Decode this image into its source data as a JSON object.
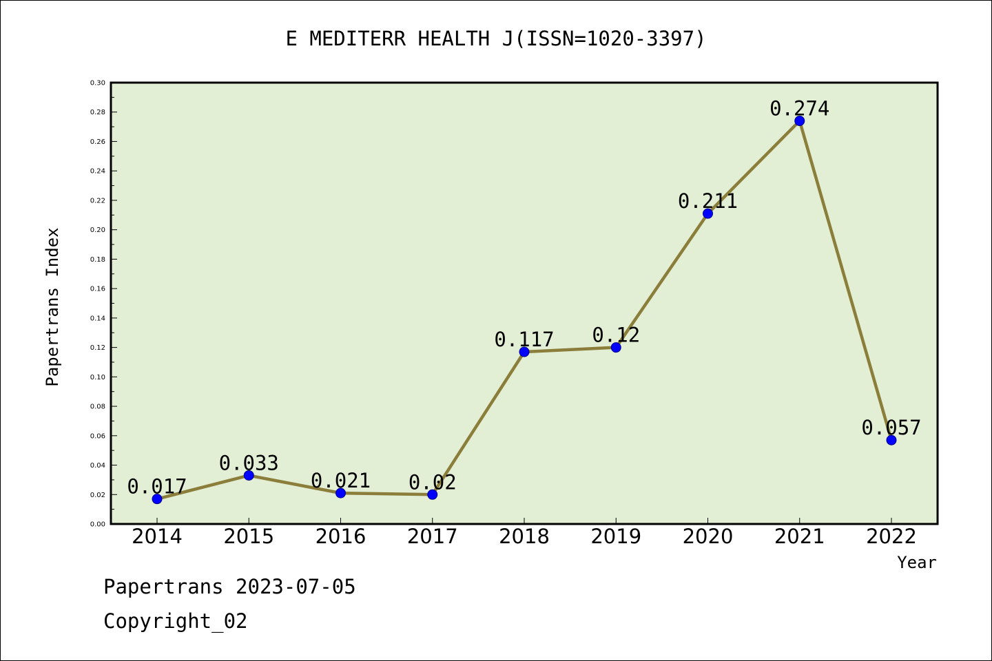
{
  "chart_data": {
    "type": "line",
    "title": "E MEDITERR HEALTH J(ISSN=1020-3397)",
    "xlabel": "Year",
    "ylabel": "Papertrans Index",
    "categories": [
      "2014",
      "2015",
      "2016",
      "2017",
      "2018",
      "2019",
      "2020",
      "2021",
      "2022"
    ],
    "series": [
      {
        "values": [
          0.017,
          0.033,
          0.021,
          0.02,
          0.117,
          0.12,
          0.211,
          0.274,
          0.057
        ],
        "labels": [
          "0.017",
          "0.033",
          "0.021",
          "0.02",
          "0.117",
          "0.12",
          "0.211",
          "0.274",
          "0.057"
        ]
      }
    ],
    "ylim": [
      0,
      0.3
    ],
    "yticks": [
      "0.00",
      "0.02",
      "0.04",
      "0.06",
      "0.08",
      "0.10",
      "0.12",
      "0.14",
      "0.16",
      "0.18",
      "0.20",
      "0.22",
      "0.24",
      "0.26",
      "0.28",
      "0.30"
    ],
    "grid": false,
    "legend": "none",
    "colors": {
      "plot_background": "#e2efd5",
      "line": "#8b7d3a",
      "marker": "#0000ff",
      "frame": "#000000"
    }
  },
  "footer": {
    "line1": "Papertrans 2023-07-05",
    "line2": "Copyright_02"
  }
}
